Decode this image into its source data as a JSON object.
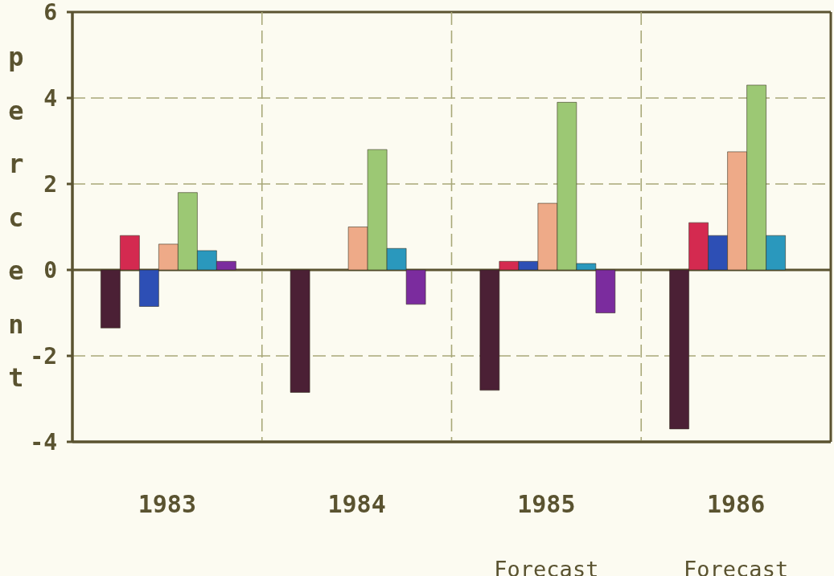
{
  "chart_data": {
    "type": "bar",
    "ylabel": "percent",
    "categories": [
      "1983",
      "1984",
      "1985 Forecast",
      "1986 Forecast"
    ],
    "series": [
      {
        "color": "#4b2035",
        "values": [
          -1.35,
          -2.85,
          -2.8,
          -3.7
        ]
      },
      {
        "color": "#d42a50",
        "values": [
          0.8,
          null,
          0.2,
          1.1
        ]
      },
      {
        "color": "#2d4fb5",
        "values": [
          -0.85,
          null,
          0.2,
          0.8
        ]
      },
      {
        "color": "#eeaa88",
        "values": [
          0.6,
          1.0,
          1.55,
          2.75
        ]
      },
      {
        "color": "#9cc874",
        "values": [
          1.8,
          2.8,
          3.9,
          4.3
        ]
      },
      {
        "color": "#2a98bd",
        "values": [
          0.45,
          0.5,
          0.15,
          0.8
        ]
      },
      {
        "color": "#7b2c9e",
        "values": [
          0.2,
          -0.8,
          -1.0,
          null
        ]
      }
    ],
    "ylim": [
      -4,
      6
    ],
    "yticks": [
      -4,
      -2,
      0,
      2,
      4,
      6
    ],
    "grid": true
  }
}
